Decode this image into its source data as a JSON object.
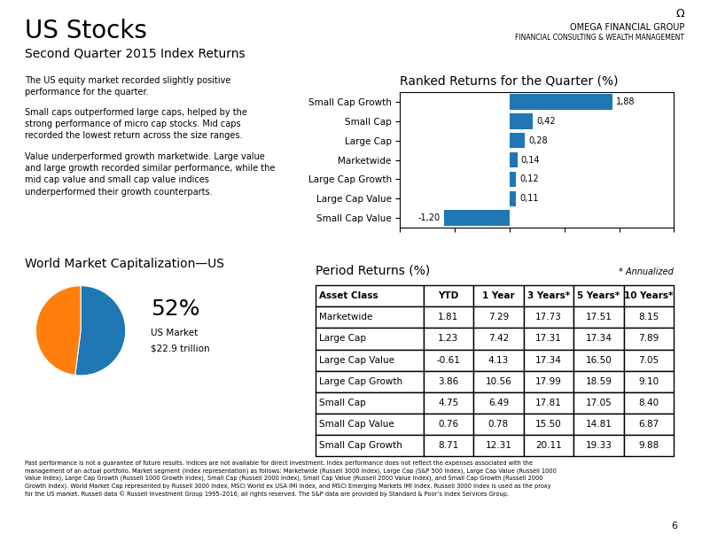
{
  "title": "US Stocks",
  "subtitle": "Second Quarter 2015 Index Returns",
  "logo": [
    "Ω",
    "OMEGA FINANCIAL GROUP",
    "FINANCIAL CONSULTING & WEALTH MANAGEMENT"
  ],
  "paragraphs": [
    "The US equity market recorded slightly positive\nperformance for the quarter.",
    "Small caps outperformed large caps, helped by the\nstrong performance of micro cap stocks. Mid caps\nrecorded the lowest return across the size ranges.",
    "Value underperformed growth marketwide. Large value\nand large growth recorded similar performance, while the\nmid cap value and small cap value indices\nunderperformed their growth counterparts."
  ],
  "footnote": "Past performance is not a guarantee of future results. Indices are not available for direct investment. Index performance does not reflect the expenses associated with the\nmanagement of an actual portfolio. Market segment (index representation) as follows: Marketwide (Russell 3000 Index), Large Cap (S&P 500 Index), Large Cap Value (Russell 1000\nValue Index), Large Cap Growth (Russell 1000 Growth Index), Small Cap (Russell 2000 Index), Small Cap Value (Russell 2000 Value Index), and Small Cap Growth (Russell 2000\nGrowth Index). World Market Cap represented by Russell 3000 Index, MSCI World ex USA IMI Index, and MSCI Emerging Markets IMI Index. Russell 3000 Index is used as the proxy\nfor the US market. Russell data © Russell Investment Group 1995–2016, all rights reserved. The S&P data are provided by Standard & Poor’s Index Services Group.",
  "page_number": "6",
  "chart_data": [
    {
      "type": "bar",
      "title": "Ranked Returns for the Quarter (%)",
      "orientation": "horizontal",
      "categories": [
        "Small Cap Growth",
        "Small Cap",
        "Large Cap",
        "Marketwide",
        "Large Cap Growth",
        "Large Cap Value",
        "Small Cap Value"
      ],
      "values": [
        1.88,
        0.42,
        0.28,
        0.14,
        0.12,
        0.11,
        -1.2
      ],
      "value_labels": [
        "1,88",
        "0,42",
        "0,28",
        "0,14",
        "0,12",
        "0,11",
        "-1,20"
      ],
      "data_labels": true,
      "xlim": [
        -2,
        3
      ],
      "xticks": [
        -2,
        -1,
        0,
        1,
        2,
        3
      ],
      "tick_labels": "y",
      "grid": false
    },
    {
      "type": "pie",
      "title": "World Market Capitalization—US",
      "categories": [
        "US Market",
        null
      ],
      "values": [
        52,
        48
      ],
      "value_labels": [
        "52%",
        null
      ],
      "annotations": [
        "$22.9 trillion"
      ]
    },
    {
      "type": "table",
      "title": "Period Returns (%)",
      "annotations": [
        "* Annualized"
      ],
      "columns": [
        "Asset Class",
        "YTD",
        "1 Year",
        "3 Years*",
        "5 Years*",
        "10 Years*"
      ],
      "rows": [
        [
          "Marketwide",
          "1.81",
          "7.29",
          "17.73",
          "17.51",
          "8.15"
        ],
        [
          "Large Cap",
          "1.23",
          "7.42",
          "17.31",
          "17.34",
          "7.89"
        ],
        [
          "Large Cap Value",
          "-0.61",
          "4.13",
          "17.34",
          "16.50",
          "7.05"
        ],
        [
          "Large Cap Growth",
          "3.86",
          "10.56",
          "17.99",
          "18.59",
          "9.10"
        ],
        [
          "Small Cap",
          "4.75",
          "6.49",
          "17.81",
          "17.05",
          "8.40"
        ],
        [
          "Small Cap Value",
          "0.76",
          "0.78",
          "15.50",
          "14.81",
          "6.87"
        ],
        [
          "Small Cap Growth",
          "8.71",
          "12.31",
          "20.11",
          "19.33",
          "9.88"
        ]
      ]
    }
  ]
}
